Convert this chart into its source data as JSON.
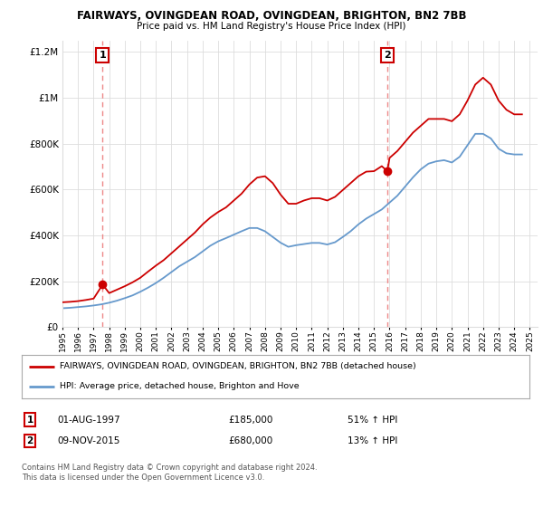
{
  "title": "FAIRWAYS, OVINGDEAN ROAD, OVINGDEAN, BRIGHTON, BN2 7BB",
  "subtitle": "Price paid vs. HM Land Registry's House Price Index (HPI)",
  "legend_line1": "FAIRWAYS, OVINGDEAN ROAD, OVINGDEAN, BRIGHTON, BN2 7BB (detached house)",
  "legend_line2": "HPI: Average price, detached house, Brighton and Hove",
  "annotation1_label": "1",
  "annotation1_date": "01-AUG-1997",
  "annotation1_price": "£185,000",
  "annotation1_hpi": "51% ↑ HPI",
  "annotation2_label": "2",
  "annotation2_date": "09-NOV-2015",
  "annotation2_price": "£680,000",
  "annotation2_hpi": "13% ↑ HPI",
  "footnote": "Contains HM Land Registry data © Crown copyright and database right 2024.\nThis data is licensed under the Open Government Licence v3.0.",
  "sale1_year": 1997.58,
  "sale1_value": 185000,
  "sale2_year": 2015.85,
  "sale2_value": 680000,
  "red_line_color": "#cc0000",
  "blue_line_color": "#6699cc",
  "dashed_line_color": "#ee8888",
  "dot_color": "#cc0000",
  "annotation_box_color": "#cc0000",
  "background_color": "#ffffff",
  "grid_color": "#dddddd",
  "ylim": [
    0,
    1250000
  ],
  "xlim_start": 1995,
  "xlim_end": 2025.5,
  "red_line_x": [
    1995,
    1995.5,
    1996,
    1996.5,
    1997,
    1997.58,
    1998,
    1998.5,
    1999,
    1999.5,
    2000,
    2000.5,
    2001,
    2001.5,
    2002,
    2002.5,
    2003,
    2003.5,
    2004,
    2004.5,
    2005,
    2005.5,
    2006,
    2006.5,
    2007,
    2007.5,
    2008,
    2008.5,
    2009,
    2009.5,
    2010,
    2010.5,
    2011,
    2011.5,
    2012,
    2012.5,
    2013,
    2013.5,
    2014,
    2014.5,
    2015,
    2015.5,
    2015.85,
    2016,
    2016.5,
    2017,
    2017.5,
    2018,
    2018.5,
    2019,
    2019.5,
    2020,
    2020.5,
    2021,
    2021.5,
    2022,
    2022.5,
    2023,
    2023.5,
    2024,
    2024.5
  ],
  "red_line_y": [
    108000,
    110000,
    113000,
    118000,
    124000,
    185000,
    148000,
    163000,
    178000,
    195000,
    215000,
    242000,
    268000,
    292000,
    322000,
    352000,
    382000,
    412000,
    448000,
    478000,
    502000,
    522000,
    552000,
    582000,
    622000,
    652000,
    658000,
    628000,
    578000,
    538000,
    538000,
    552000,
    562000,
    562000,
    552000,
    568000,
    598000,
    628000,
    658000,
    678000,
    680000,
    702000,
    680000,
    738000,
    768000,
    808000,
    848000,
    878000,
    908000,
    908000,
    908000,
    898000,
    928000,
    988000,
    1058000,
    1088000,
    1058000,
    988000,
    948000,
    928000,
    928000
  ],
  "blue_line_x": [
    1995,
    1995.5,
    1996,
    1996.5,
    1997,
    1997.5,
    1998,
    1998.5,
    1999,
    1999.5,
    2000,
    2000.5,
    2001,
    2001.5,
    2002,
    2002.5,
    2003,
    2003.5,
    2004,
    2004.5,
    2005,
    2005.5,
    2006,
    2006.5,
    2007,
    2007.5,
    2008,
    2008.5,
    2009,
    2009.5,
    2010,
    2010.5,
    2011,
    2011.5,
    2012,
    2012.5,
    2013,
    2013.5,
    2014,
    2014.5,
    2015,
    2015.5,
    2016,
    2016.5,
    2017,
    2017.5,
    2018,
    2018.5,
    2019,
    2019.5,
    2020,
    2020.5,
    2021,
    2021.5,
    2022,
    2022.5,
    2023,
    2023.5,
    2024,
    2024.5
  ],
  "blue_line_y": [
    82000,
    84000,
    87000,
    90000,
    94000,
    99000,
    106000,
    115000,
    126000,
    138000,
    154000,
    172000,
    192000,
    215000,
    240000,
    265000,
    285000,
    305000,
    330000,
    355000,
    374000,
    388000,
    403000,
    418000,
    432000,
    432000,
    418000,
    393000,
    368000,
    350000,
    357000,
    362000,
    367000,
    367000,
    360000,
    370000,
    393000,
    418000,
    448000,
    473000,
    493000,
    513000,
    543000,
    573000,
    613000,
    653000,
    688000,
    713000,
    723000,
    728000,
    718000,
    743000,
    793000,
    843000,
    843000,
    823000,
    778000,
    758000,
    753000,
    753000
  ]
}
